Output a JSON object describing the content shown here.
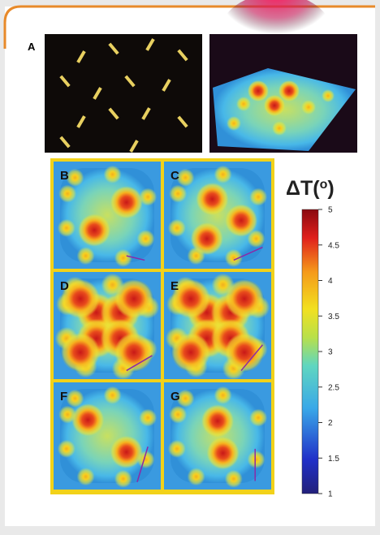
{
  "panel_labels": [
    "A",
    "B",
    "C",
    "D",
    "E",
    "F",
    "G"
  ],
  "colorbar": {
    "title": "ΔT(",
    "title_sup": "o",
    "title_end": ")",
    "lim": [
      1,
      5
    ],
    "ticks": [
      1,
      {
        "value": 1.5,
        "label": "1.5"
      },
      2,
      {
        "value": 2.5,
        "label": "2.5"
      },
      3,
      {
        "value": 3.5,
        "label": "3.5"
      },
      4,
      {
        "value": 4.5,
        "label": "4.5"
      },
      5
    ]
  }
}
